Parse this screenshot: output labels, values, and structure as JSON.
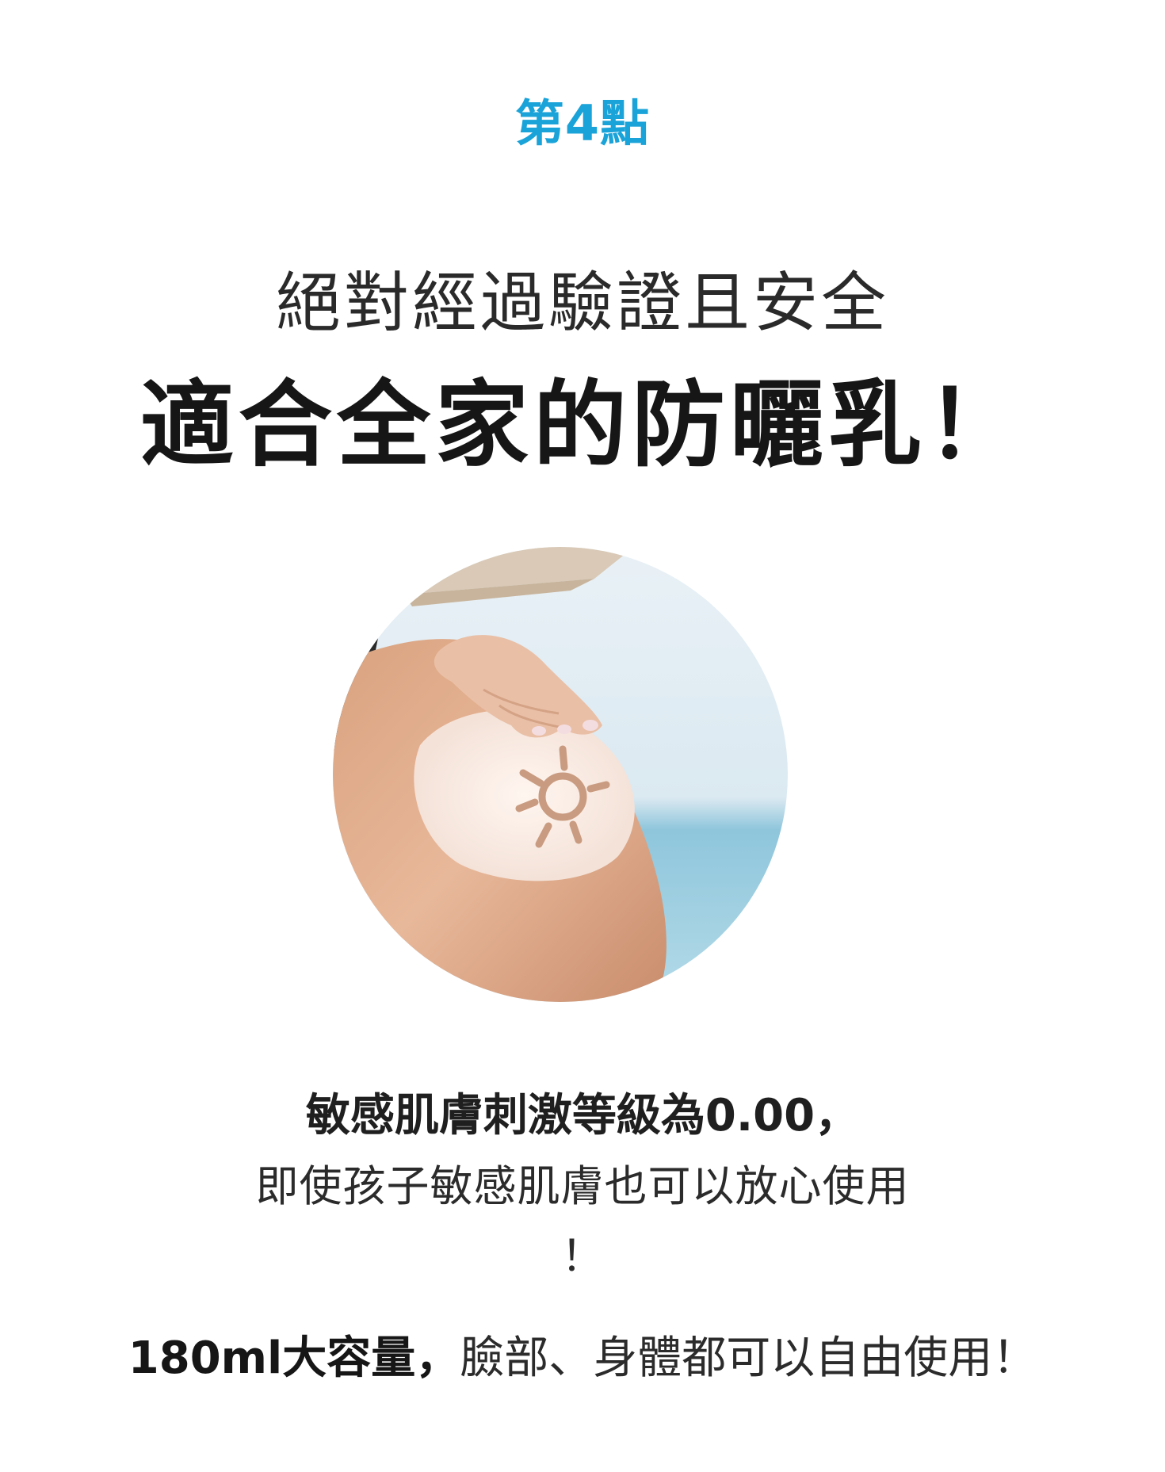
{
  "point_label": "第4點",
  "headline": {
    "line1": "絕對經過驗證且安全",
    "line2": "適合全家的防曬乳！"
  },
  "description": {
    "bold_line": "敏感肌膚刺激等級為0.00，",
    "normal_line": "即使孩子敏感肌膚也可以放心使用",
    "exclaim": "！"
  },
  "feature": {
    "bold_part": "180ml大容量，",
    "normal_part": "臉部、身體都可以自由使用！"
  },
  "colors": {
    "accent": "#1aa3d9",
    "text": "#1a1a1a"
  }
}
